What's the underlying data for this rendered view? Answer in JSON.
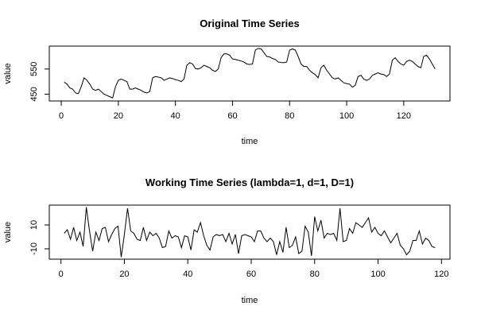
{
  "chart_data": [
    {
      "type": "line",
      "title": "Original Time Series",
      "xlabel": "time",
      "ylabel": "value",
      "color": "#000000",
      "xlim": [
        -4.2,
        136.2
      ],
      "ylim": [
        423,
        641
      ],
      "xticks": [
        0,
        20,
        40,
        60,
        80,
        100,
        120
      ],
      "yticks": [
        450,
        550
      ],
      "x": [
        1,
        2,
        3,
        4,
        5,
        6,
        7,
        8,
        9,
        10,
        11,
        12,
        13,
        14,
        15,
        16,
        17,
        18,
        19,
        20,
        21,
        22,
        23,
        24,
        25,
        26,
        27,
        28,
        29,
        30,
        31,
        32,
        33,
        34,
        35,
        36,
        37,
        38,
        39,
        40,
        41,
        42,
        43,
        44,
        45,
        46,
        47,
        48,
        49,
        50,
        51,
        52,
        53,
        54,
        55,
        56,
        57,
        58,
        59,
        60,
        61,
        62,
        63,
        64,
        65,
        66,
        67,
        68,
        69,
        70,
        71,
        72,
        73,
        74,
        75,
        76,
        77,
        78,
        79,
        80,
        81,
        82,
        83,
        84,
        85,
        86,
        87,
        88,
        89,
        90,
        91,
        92,
        93,
        94,
        95,
        96,
        97,
        98,
        99,
        100,
        101,
        102,
        103,
        104,
        105,
        106,
        107,
        108,
        109,
        110,
        111,
        112,
        113,
        114,
        115,
        116,
        117,
        118,
        119,
        120,
        121,
        122,
        123,
        124,
        125,
        126,
        127,
        128,
        129,
        130,
        131
      ],
      "values": [
        498,
        490,
        475,
        470,
        455,
        452,
        480,
        515,
        505,
        490,
        470,
        465,
        470,
        460,
        450,
        445,
        440,
        435,
        480,
        505,
        510,
        505,
        500,
        470,
        470,
        475,
        470,
        465,
        458,
        455,
        460,
        515,
        520,
        518,
        515,
        505,
        510,
        515,
        512,
        508,
        505,
        500,
        510,
        565,
        575,
        570,
        552,
        550,
        555,
        565,
        560,
        555,
        545,
        540,
        550,
        595,
        610,
        610,
        605,
        590,
        588,
        585,
        582,
        578,
        570,
        568,
        570,
        625,
        632,
        630,
        615,
        600,
        598,
        592,
        588,
        578,
        576,
        575,
        578,
        625,
        630,
        625,
        600,
        570,
        560,
        560,
        545,
        535,
        528,
        515,
        555,
        565,
        545,
        530,
        515,
        510,
        515,
        505,
        495,
        492,
        490,
        478,
        485,
        520,
        525,
        510,
        505,
        510,
        525,
        530,
        535,
        530,
        528,
        520,
        530,
        585,
        595,
        580,
        570,
        565,
        580,
        585,
        580,
        570,
        560,
        555,
        600,
        605,
        590,
        570,
        550
      ]
    },
    {
      "type": "line",
      "title": "Working Time Series (lambda=1, d=1, D=1)",
      "xlabel": "time",
      "ylabel": "value",
      "color": "#000000",
      "xlim": [
        -3.68,
        122.68
      ],
      "ylim": [
        -18.7,
        26.7
      ],
      "xticks": [
        0,
        20,
        40,
        60,
        80,
        100,
        120
      ],
      "yticks": [
        -10,
        10
      ],
      "x": [
        1,
        2,
        3,
        4,
        5,
        6,
        7,
        8,
        9,
        10,
        11,
        12,
        13,
        14,
        15,
        16,
        17,
        18,
        19,
        20,
        21,
        22,
        23,
        24,
        25,
        26,
        27,
        28,
        29,
        30,
        31,
        32,
        33,
        34,
        35,
        36,
        37,
        38,
        39,
        40,
        41,
        42,
        43,
        44,
        45,
        46,
        47,
        48,
        49,
        50,
        51,
        52,
        53,
        54,
        55,
        56,
        57,
        58,
        59,
        60,
        61,
        62,
        63,
        64,
        65,
        66,
        67,
        68,
        69,
        70,
        71,
        72,
        73,
        74,
        75,
        76,
        77,
        78,
        79,
        80,
        81,
        82,
        83,
        84,
        85,
        86,
        87,
        88,
        89,
        90,
        91,
        92,
        93,
        94,
        95,
        96,
        97,
        98,
        99,
        100,
        101,
        102,
        103,
        104,
        105,
        106,
        107,
        108,
        109,
        110,
        111,
        112,
        113,
        114,
        115,
        116,
        117,
        118
      ],
      "values": [
        3,
        6,
        -2,
        8,
        -3,
        4,
        -8,
        25,
        5,
        -12,
        4,
        -3,
        7,
        8,
        -4,
        2,
        7,
        9,
        -17,
        2,
        24,
        5,
        3,
        -2,
        -3,
        8,
        -3,
        4,
        1,
        3,
        -1,
        -9,
        -8,
        5,
        -1,
        1,
        0,
        -9,
        1,
        0,
        -11,
        6,
        4,
        12,
        1,
        -7,
        -11,
        0,
        2,
        1,
        2,
        -4,
        3,
        -6,
        2,
        -14,
        1,
        2,
        1,
        0,
        -4,
        5,
        5,
        -1,
        -4,
        -1,
        -4,
        -15,
        -4,
        -13,
        8,
        -9,
        -7,
        0,
        -14,
        -12,
        9,
        4,
        -16,
        17,
        5,
        14,
        -1,
        3,
        2,
        3,
        -3,
        24,
        -4,
        -3,
        7,
        3,
        12,
        10,
        8,
        12,
        16,
        4,
        8,
        3,
        1,
        5,
        0,
        -5,
        -1,
        3,
        -7,
        -10,
        -15,
        -12,
        -3,
        -3,
        5,
        -6,
        -1,
        -3,
        -8,
        -9
      ]
    }
  ]
}
